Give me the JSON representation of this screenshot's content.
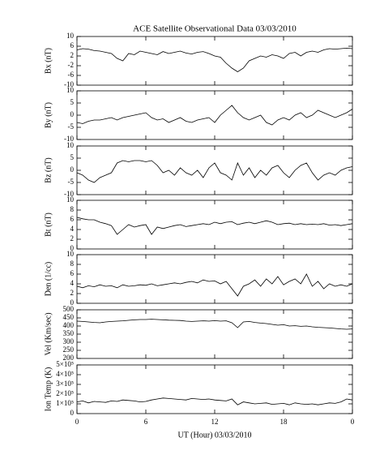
{
  "chart_data": {
    "type": "line",
    "title": "ACE Satellite Observational Data   03/03/2010",
    "xlabel": "UT (Hour)   03/03/2010",
    "xlim": [
      0,
      24
    ],
    "xticks": [
      0,
      6,
      12,
      18,
      {
        "value": 24,
        "label": "0"
      }
    ],
    "x": [
      0,
      0.5,
      1,
      1.5,
      2,
      2.5,
      3,
      3.5,
      4,
      4.5,
      5,
      5.5,
      6,
      6.5,
      7,
      7.5,
      8,
      8.5,
      9,
      9.5,
      10,
      10.5,
      11,
      11.5,
      12,
      12.5,
      13,
      13.5,
      14,
      14.5,
      15,
      15.5,
      16,
      16.5,
      17,
      17.5,
      18,
      18.5,
      19,
      19.5,
      20,
      20.5,
      21,
      21.5,
      22,
      22.5,
      23,
      23.5,
      24
    ],
    "color": "#000000",
    "panels": [
      {
        "ylabel": "Bx (nT)",
        "ylim": [
          -10,
          10
        ],
        "yticks": [
          -10,
          -6,
          -2,
          2,
          6,
          10
        ],
        "values": [
          4.5,
          5,
          4.8,
          4.2,
          4,
          3.5,
          3,
          1,
          0,
          3,
          2.5,
          4,
          3.5,
          3,
          2.5,
          3.8,
          3,
          3.5,
          4,
          3.2,
          2.8,
          3.5,
          3.8,
          3,
          2,
          1.5,
          -1,
          -3,
          -4.5,
          -3,
          0,
          1,
          2,
          1.5,
          2.5,
          2,
          1,
          3,
          3.5,
          2,
          3.5,
          4,
          3.5,
          4.5,
          5,
          4.8,
          5,
          5.2,
          5
        ]
      },
      {
        "ylabel": "By (nT)",
        "ylim": [
          -10,
          10
        ],
        "yticks": [
          -10,
          -5,
          0,
          5,
          10
        ],
        "values": [
          -3,
          -3.5,
          -2.5,
          -2,
          -2,
          -1.5,
          -1,
          -2,
          -1,
          -0.5,
          0,
          0.5,
          1,
          -1,
          -2,
          -1.5,
          -3,
          -2,
          -1,
          -2.5,
          -3,
          -2,
          -1.5,
          -1,
          -3,
          0,
          2,
          4,
          1,
          -1,
          -2,
          -1,
          0,
          -3,
          -4,
          -2,
          -1,
          -2,
          0,
          1,
          -1,
          0,
          2,
          1,
          0,
          -1,
          0,
          1,
          2.5
        ]
      },
      {
        "ylabel": "Bz (nT)",
        "ylim": [
          -10,
          10
        ],
        "yticks": [
          -10,
          -5,
          0,
          5,
          10
        ],
        "values": [
          -1,
          -2,
          -4,
          -5,
          -3,
          -2,
          -1,
          3,
          4,
          3.5,
          4,
          4,
          3.5,
          4,
          2,
          -1,
          0,
          -2,
          1,
          -1,
          -2,
          0,
          -3,
          1,
          3,
          -1,
          -2,
          -4,
          3,
          -2,
          1,
          -3,
          0,
          -2,
          1,
          2,
          -1,
          -3,
          0,
          2,
          3,
          -1,
          -4,
          -2,
          -1,
          -2,
          0,
          1,
          1.5
        ]
      },
      {
        "ylabel": "Bt (nT)",
        "ylim": [
          0,
          10
        ],
        "yticks": [
          0,
          2,
          4,
          6,
          8,
          10
        ],
        "values": [
          6.5,
          6.2,
          6,
          6,
          5.5,
          5.2,
          4.8,
          3,
          4,
          5,
          4.5,
          4.8,
          5,
          3,
          4.5,
          4.2,
          4.5,
          4.8,
          5,
          4.6,
          4.8,
          5,
          5.2,
          5,
          5.5,
          5.2,
          5.5,
          5.6,
          5,
          5.3,
          5.5,
          5.2,
          5.5,
          5.8,
          5.5,
          5,
          5.2,
          5.3,
          5,
          5.2,
          5,
          5.1,
          5,
          5.2,
          4.9,
          5,
          4.8,
          5,
          5.2
        ]
      },
      {
        "ylabel": "Den (1/cc)",
        "ylim": [
          0,
          10
        ],
        "yticks": [
          0,
          2,
          4,
          6,
          8,
          10
        ],
        "values": [
          3.5,
          3.2,
          3.6,
          3.4,
          3.8,
          3.5,
          3.6,
          3.2,
          3.8,
          3.5,
          3.6,
          3.8,
          3.7,
          4,
          3.6,
          3.8,
          4,
          4.2,
          4,
          4.3,
          4.5,
          4.2,
          4.8,
          4.5,
          4.6,
          4,
          4.5,
          3,
          1.5,
          3.5,
          4,
          4.8,
          3.5,
          5,
          4,
          5.5,
          3.8,
          4.5,
          5,
          4,
          6,
          3.5,
          4.5,
          3,
          4,
          3.5,
          3.8,
          3.5,
          4
        ]
      },
      {
        "ylabel": "Vel (Km/sec)",
        "ylim": [
          200,
          500
        ],
        "yticks": [
          200,
          250,
          300,
          350,
          400,
          450,
          500
        ],
        "values": [
          430,
          428,
          425,
          422,
          420,
          425,
          428,
          430,
          432,
          435,
          438,
          440,
          440,
          442,
          440,
          438,
          436,
          435,
          434,
          430,
          428,
          430,
          432,
          430,
          433,
          430,
          432,
          420,
          390,
          425,
          428,
          422,
          418,
          415,
          410,
          405,
          408,
          400,
          402,
          398,
          400,
          395,
          392,
          390,
          388,
          385,
          382,
          380,
          382
        ]
      },
      {
        "ylabel": "Ion Temp (K)",
        "ylim": [
          0,
          500000
        ],
        "yticks": [
          0,
          {
            "value": 100000,
            "label": "1×10⁵"
          },
          {
            "value": 200000,
            "label": "2×10⁵"
          },
          {
            "value": 300000,
            "label": "3×10⁵"
          },
          {
            "value": 400000,
            "label": "4×10⁵"
          },
          {
            "value": 500000,
            "label": "5×10⁵"
          }
        ],
        "values": [
          120000,
          130000,
          110000,
          125000,
          120000,
          115000,
          130000,
          125000,
          140000,
          135000,
          130000,
          120000,
          125000,
          140000,
          150000,
          160000,
          155000,
          150000,
          145000,
          140000,
          155000,
          150000,
          145000,
          150000,
          140000,
          135000,
          130000,
          150000,
          90000,
          120000,
          110000,
          100000,
          105000,
          110000,
          95000,
          100000,
          105000,
          90000,
          110000,
          100000,
          95000,
          100000,
          90000,
          100000,
          110000,
          105000,
          120000,
          150000,
          140000
        ]
      }
    ]
  }
}
